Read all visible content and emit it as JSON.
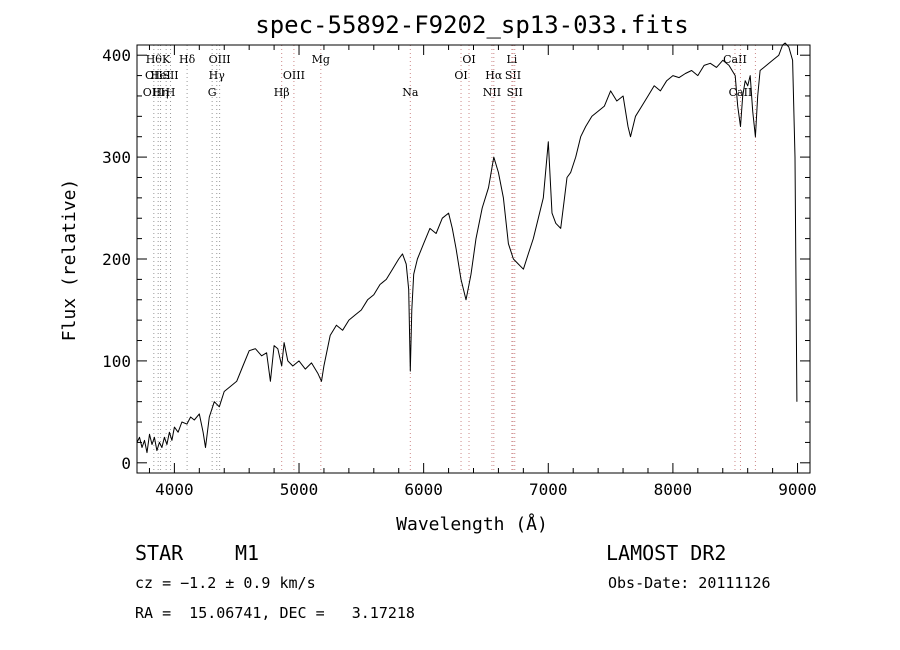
{
  "chart_data": {
    "type": "line",
    "title": "spec-55892-F9202_sp13-033.fits",
    "xlabel": "Wavelength (Å)",
    "ylabel": "Flux (relative)",
    "xlim": [
      3700,
      9100
    ],
    "ylim": [
      -10,
      410
    ],
    "x_ticks": [
      4000,
      5000,
      6000,
      7000,
      8000,
      9000
    ],
    "y_ticks": [
      0,
      100,
      200,
      300,
      400
    ],
    "grid": false,
    "series": [
      {
        "color": "#000000",
        "x": [
          3700,
          3720,
          3740,
          3760,
          3780,
          3800,
          3820,
          3840,
          3860,
          3880,
          3900,
          3920,
          3940,
          3960,
          3980,
          4000,
          4030,
          4060,
          4100,
          4130,
          4160,
          4200,
          4230,
          4250,
          4280,
          4320,
          4360,
          4400,
          4450,
          4500,
          4550,
          4600,
          4650,
          4700,
          4740,
          4770,
          4800,
          4830,
          4861,
          4880,
          4910,
          4950,
          5000,
          5050,
          5100,
          5150,
          5180,
          5200,
          5250,
          5300,
          5350,
          5400,
          5450,
          5500,
          5550,
          5600,
          5650,
          5700,
          5750,
          5800,
          5830,
          5860,
          5880,
          5893,
          5905,
          5920,
          5950,
          6000,
          6050,
          6100,
          6150,
          6200,
          6230,
          6260,
          6300,
          6340,
          6380,
          6420,
          6470,
          6520,
          6563,
          6600,
          6640,
          6680,
          6720,
          6760,
          6800,
          6840,
          6880,
          6920,
          6960,
          7000,
          7030,
          7060,
          7100,
          7130,
          7150,
          7180,
          7220,
          7260,
          7300,
          7350,
          7400,
          7450,
          7500,
          7550,
          7600,
          7640,
          7660,
          7680,
          7700,
          7750,
          7800,
          7850,
          7900,
          7950,
          8000,
          8050,
          8100,
          8150,
          8200,
          8250,
          8300,
          8350,
          8400,
          8450,
          8500,
          8520,
          8542,
          8560,
          8580,
          8600,
          8620,
          8640,
          8662,
          8680,
          8700,
          8750,
          8800,
          8850,
          8880,
          8900,
          8930,
          8960,
          8980,
          8995
        ],
        "y": [
          20,
          25,
          15,
          22,
          10,
          28,
          18,
          25,
          12,
          20,
          15,
          25,
          18,
          30,
          22,
          35,
          30,
          40,
          38,
          45,
          42,
          48,
          30,
          15,
          45,
          60,
          55,
          70,
          75,
          80,
          95,
          110,
          112,
          105,
          108,
          80,
          115,
          112,
          95,
          118,
          100,
          95,
          100,
          92,
          98,
          88,
          80,
          95,
          125,
          135,
          130,
          140,
          145,
          150,
          160,
          165,
          175,
          180,
          190,
          200,
          205,
          195,
          170,
          90,
          150,
          185,
          200,
          215,
          230,
          225,
          240,
          245,
          230,
          210,
          180,
          160,
          185,
          220,
          250,
          270,
          300,
          285,
          260,
          215,
          200,
          195,
          190,
          205,
          220,
          240,
          260,
          315,
          245,
          235,
          230,
          260,
          280,
          285,
          300,
          320,
          330,
          340,
          345,
          350,
          365,
          355,
          360,
          330,
          320,
          330,
          340,
          350,
          360,
          370,
          365,
          375,
          380,
          378,
          382,
          385,
          380,
          390,
          392,
          388,
          395,
          390,
          380,
          350,
          330,
          360,
          375,
          370,
          380,
          345,
          320,
          360,
          385,
          390,
          395,
          400,
          410,
          412,
          408,
          395,
          300,
          60
        ]
      }
    ],
    "line_markers": [
      {
        "wl": 3835,
        "top": "Hθ",
        "mid": "OII",
        "bot": "OIII",
        "color": "#999999"
      },
      {
        "wl": 3870,
        "top": "",
        "mid": "",
        "bot": "",
        "color": "#999999"
      },
      {
        "wl": 3889,
        "top": "",
        "mid": "HeI",
        "bot": "Hη",
        "color": "#999999"
      },
      {
        "wl": 3934,
        "top": "K",
        "mid": "",
        "bot": "",
        "color": "#999999"
      },
      {
        "wl": 3969,
        "top": "",
        "mid": "SII",
        "bot": "H",
        "color": "#999999"
      },
      {
        "wl": 4102,
        "top": "Hδ",
        "mid": "",
        "bot": "",
        "color": "#999999"
      },
      {
        "wl": 4303,
        "top": "",
        "mid": "",
        "bot": "G",
        "color": "#999999"
      },
      {
        "wl": 4340,
        "top": "",
        "mid": "Hγ",
        "bot": "",
        "color": "#999999"
      },
      {
        "wl": 4363,
        "top": "OIII",
        "mid": "",
        "bot": "",
        "color": "#999999"
      },
      {
        "wl": 4861,
        "top": "",
        "mid": "",
        "bot": "Hβ",
        "color": "#cc8888"
      },
      {
        "wl": 4959,
        "top": "",
        "mid": "OIII",
        "bot": "",
        "color": "#cc8888"
      },
      {
        "wl": 5175,
        "top": "Mg",
        "mid": "",
        "bot": "",
        "color": "#cc8888"
      },
      {
        "wl": 5893,
        "top": "",
        "mid": "",
        "bot": "Na",
        "color": "#cc8888"
      },
      {
        "wl": 6300,
        "top": "",
        "mid": "OI",
        "bot": "",
        "color": "#cc8888"
      },
      {
        "wl": 6364,
        "top": "OI",
        "mid": "",
        "bot": "",
        "color": "#cc8888"
      },
      {
        "wl": 6548,
        "top": "",
        "mid": "",
        "bot": "NII",
        "color": "#cc8888"
      },
      {
        "wl": 6563,
        "top": "",
        "mid": "Hα",
        "bot": "",
        "color": "#cc8888"
      },
      {
        "wl": 6708,
        "top": "Li",
        "mid": "",
        "bot": "",
        "color": "#cc8888"
      },
      {
        "wl": 6717,
        "top": "",
        "mid": "SII",
        "bot": "",
        "color": "#cc8888"
      },
      {
        "wl": 6731,
        "top": "",
        "mid": "",
        "bot": "SII",
        "color": "#cc8888"
      },
      {
        "wl": 8498,
        "top": "CaII",
        "mid": "",
        "bot": "",
        "color": "#cc8888"
      },
      {
        "wl": 8542,
        "top": "",
        "mid": "",
        "bot": "CaII",
        "color": "#cc8888"
      },
      {
        "wl": 8662,
        "top": "",
        "mid": "",
        "bot": "",
        "color": "#cc8888"
      }
    ]
  },
  "footer": {
    "class_label": "STAR",
    "subclass": "M1",
    "survey": "LAMOST DR2",
    "cz": "cz = −1.2 ± 0.9 km/s",
    "obs_date": "Obs-Date: 20111126",
    "coords": "RA =  15.06741, DEC =   3.17218"
  }
}
